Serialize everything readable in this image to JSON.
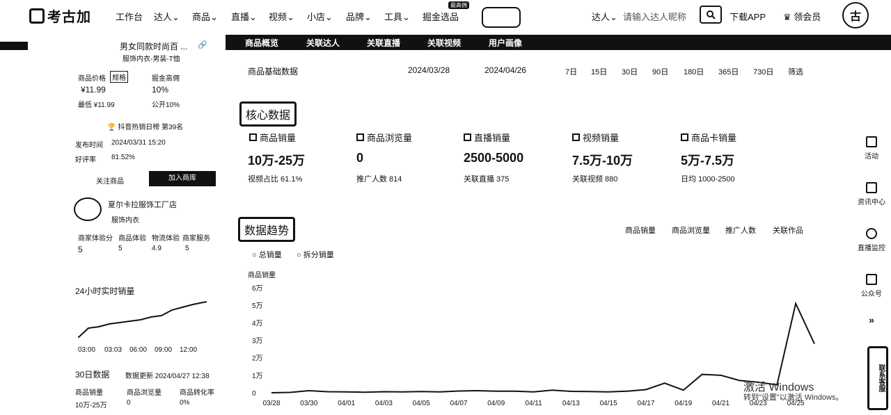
{
  "nav": {
    "brand": "考古加",
    "items": [
      "工作台",
      "达人",
      "商品",
      "直播",
      "视频",
      "小店",
      "品牌",
      "工具",
      "掘金选品"
    ],
    "hot_badge": "最高佣",
    "user_menu": "达人",
    "search_placeholder": "请输入达人昵称",
    "download": "下载APP",
    "member": "领会员"
  },
  "product": {
    "title_line2": "男女同款时尚百 ...",
    "category": "服饰内衣-男装-T恤",
    "price_label": "商品价格",
    "spec_label": "规格",
    "price": "¥11.99",
    "lowest": "最低 ¥11.99",
    "commission_label": "掘金高佣",
    "commission": "10%",
    "public": "公开10%",
    "rank": "抖音热销日榜 第39名",
    "publish_label": "发布时间",
    "publish_time": "2024/03/31 15:20",
    "rating_label": "好评率",
    "rating": "81.52%",
    "follow_btn": "关注商品",
    "add_btn": "加入商库"
  },
  "shop": {
    "name": "夏尔卡拉服饰工厂店",
    "category": "服饰内衣",
    "scores": [
      {
        "label": "商家体验分",
        "value": "5"
      },
      {
        "label": "商品体验",
        "value": "5"
      },
      {
        "label": "物流体验",
        "value": "4.9"
      },
      {
        "label": "商家服务",
        "value": "5"
      }
    ]
  },
  "realtime": {
    "title": "24小时实时销量",
    "ticks": [
      "03:00",
      "03:03",
      "06:00",
      "09:00",
      "12:00"
    ]
  },
  "stats30": {
    "title": "30日数据",
    "updated": "数据更新 2024/04/27 12:38",
    "cols": [
      {
        "label": "商品销量",
        "value": "10万-25万"
      },
      {
        "label": "商品浏览量",
        "value": "0"
      },
      {
        "label": "商品转化率",
        "value": "0%"
      }
    ]
  },
  "tabs": [
    "商品概览",
    "关联达人",
    "关联直播",
    "关联视频",
    "用户画像"
  ],
  "range": {
    "label": "商品基础数据",
    "start": "2024/03/28",
    "end": "2024/04/26",
    "options": [
      "7日",
      "15日",
      "30日",
      "90日",
      "180日",
      "365日",
      "730日",
      "筛选"
    ]
  },
  "core": {
    "title": "核心数据",
    "metrics": [
      {
        "label": "商品销量",
        "value": "10万-25万",
        "sub": "视频占比 61.1%"
      },
      {
        "label": "商品浏览量",
        "value": "0",
        "sub": "推广人数 814"
      },
      {
        "label": "直播销量",
        "value": "2500-5000",
        "sub": "关联直播 375"
      },
      {
        "label": "视频销量",
        "value": "7.5万-10万",
        "sub": "关联视频 880"
      },
      {
        "label": "商品卡销量",
        "value": "5万-7.5万",
        "sub": "日均 1000-2500"
      }
    ]
  },
  "trend": {
    "title": "数据趋势",
    "tabs_right": [
      "商品销量",
      "商品浏览量",
      "推广人数",
      "关联作品"
    ],
    "tabs_left": [
      "总销量",
      "拆分销量"
    ],
    "ylabel": "商品销量"
  },
  "right_sidebar": [
    {
      "label": "活动",
      "icon": "gift-icon"
    },
    {
      "label": "资讯中心",
      "icon": "news-icon"
    },
    {
      "label": "直播监控",
      "icon": "camera-icon"
    },
    {
      "label": "公众号",
      "icon": "qrcode-icon"
    }
  ],
  "float_btn": "联系客服",
  "watermark": {
    "line1": "激活 Windows",
    "line2": "转到\"设置\"以激活 Windows。"
  },
  "chart_data": {
    "type": "line",
    "x": [
      "03/28",
      "03/29",
      "03/30",
      "03/31",
      "04/01",
      "04/02",
      "04/03",
      "04/04",
      "04/05",
      "04/06",
      "04/07",
      "04/08",
      "04/09",
      "04/10",
      "04/11",
      "04/12",
      "04/13",
      "04/14",
      "04/15",
      "04/16",
      "04/17",
      "04/18",
      "04/19",
      "04/20",
      "04/21",
      "04/22",
      "04/23",
      "04/24",
      "04/25",
      "04/26"
    ],
    "xticks": [
      "03/28",
      "03/30",
      "04/01",
      "04/03",
      "04/05",
      "04/07",
      "04/09",
      "04/11",
      "04/13",
      "04/15",
      "04/17",
      "04/19",
      "04/21",
      "04/23",
      "04/25"
    ],
    "yticks": [
      "0",
      "1万",
      "2万",
      "3万",
      "4万",
      "5万",
      "6万"
    ],
    "ylim": [
      0,
      60000
    ],
    "series": [
      {
        "values": [
          0,
          200,
          1200,
          600,
          500,
          300,
          600,
          500,
          700,
          500,
          1000,
          1200,
          900,
          900,
          500,
          1500,
          800,
          700,
          500,
          900,
          1800,
          5500,
          1500,
          10500,
          10000,
          7000,
          6000,
          4500,
          51000,
          28000
        ]
      }
    ]
  }
}
